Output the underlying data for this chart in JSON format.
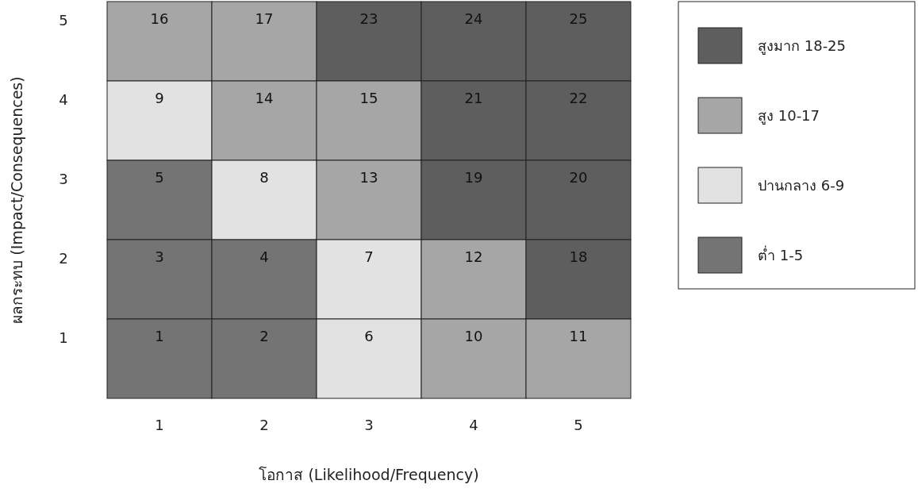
{
  "chart_data": [
    {
      "type": "heatmap",
      "xlabel": "โอกาส (Likelihood/Frequency)",
      "ylabel": "ผลกระทบ (Impact/Consequences)",
      "categories": [
        "1",
        "2",
        "3",
        "4",
        "5"
      ],
      "y_categories": [
        "5",
        "4",
        "3",
        "2",
        "1"
      ],
      "data_labels": true,
      "cells": [
        [
          16,
          17,
          23,
          24,
          25
        ],
        [
          9,
          14,
          15,
          21,
          22
        ],
        [
          5,
          8,
          13,
          19,
          20
        ],
        [
          3,
          4,
          7,
          12,
          18
        ],
        [
          1,
          2,
          6,
          10,
          11
        ]
      ],
      "colors": [
        [
          "#a6a6a6",
          "#a6a6a6",
          "#5e5e5e",
          "#5e5e5e",
          "#5e5e5e"
        ],
        [
          "#e2e2e2",
          "#a6a6a6",
          "#a6a6a6",
          "#5e5e5e",
          "#5e5e5e"
        ],
        [
          "#747474",
          "#e2e2e2",
          "#a6a6a6",
          "#5e5e5e",
          "#5e5e5e"
        ],
        [
          "#747474",
          "#747474",
          "#e2e2e2",
          "#a6a6a6",
          "#5e5e5e"
        ],
        [
          "#747474",
          "#747474",
          "#e2e2e2",
          "#a6a6a6",
          "#a6a6a6"
        ]
      ]
    },
    {
      "type": "other",
      "categories": [
        "สูงมาก 18-25",
        "สูง 10-17",
        "ปานกลาง 6-9",
        "ต่ำ 1-5"
      ],
      "colors": [
        "#5e5e5e",
        "#a6a6a6",
        "#e2e2e2",
        "#747474"
      ]
    }
  ]
}
